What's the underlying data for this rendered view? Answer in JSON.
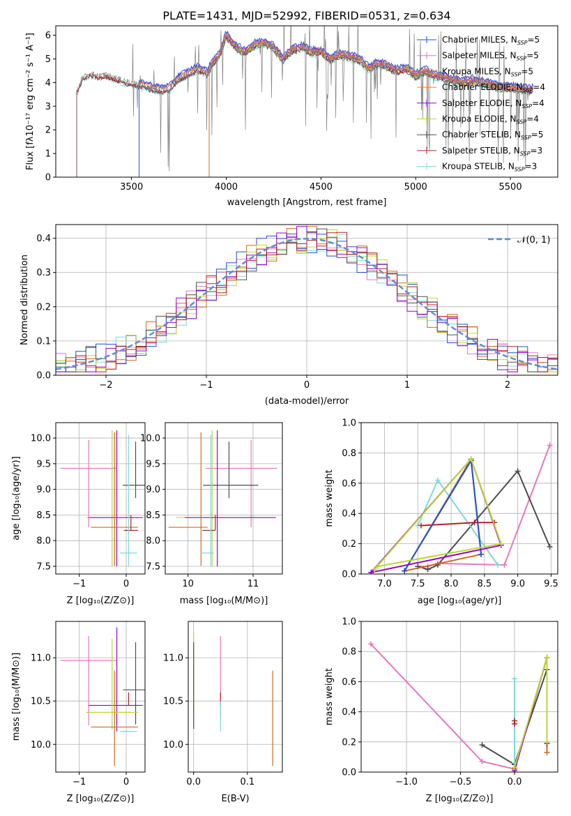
{
  "title": "PLATE=1431, MJD=52992, FIBERID=0531, z=0.634",
  "colors": {
    "chabrier_miles": "#1f4fd6",
    "salpeter_miles": "#e377c2",
    "kroupa_miles": "#d2691e",
    "chabrier_elodie": "#ff7f0e",
    "salpeter_elodie": "#9400d3",
    "kroupa_elodie": "#bcd630",
    "chabrier_stelib": "#4d4d4d",
    "salpeter_stelib": "#b22222",
    "kroupa_stelib": "#7fd8d8",
    "normal": "#5b8fd6",
    "data": "#808080"
  },
  "chart_data": [
    {
      "id": "spectrum",
      "type": "line",
      "title": "PLATE=1431, MJD=52992, FIBERID=0531, z=0.634",
      "xlabel": "wavelength [Angstrom, rest frame]",
      "ylabel": "Flux [f_λ 10^-17 erg cm^-2 s^-1 A^-1]",
      "xlim": [
        3100,
        5750
      ],
      "ylim": [
        0,
        6.4
      ],
      "xticks": [
        3500,
        4000,
        4500,
        5000,
        5500
      ],
      "yticks": [
        0,
        1,
        2,
        3,
        4,
        5,
        6
      ],
      "legend_position": "top-right",
      "legend": [
        {
          "label": "Chabrier MILES, N",
          "sub": "SSP",
          "suffix": "=5",
          "color_key": "chabrier_miles"
        },
        {
          "label": "Salpeter MILES, N",
          "sub": "SSP",
          "suffix": "=5",
          "color_key": "salpeter_miles"
        },
        {
          "label": "Kroupa MILES, N",
          "sub": "SSP",
          "suffix": "=5",
          "color_key": "kroupa_miles"
        },
        {
          "label": "Chabrier ELODIE, N",
          "sub": "SSP",
          "suffix": "=4",
          "color_key": "chabrier_elodie"
        },
        {
          "label": "Salpeter ELODIE, N",
          "sub": "SSP",
          "suffix": "=4",
          "color_key": "salpeter_elodie"
        },
        {
          "label": "Kroupa ELODIE, N",
          "sub": "SSP",
          "suffix": "=4",
          "color_key": "kroupa_elodie"
        },
        {
          "label": "Chabrier STELIB, N",
          "sub": "SSP",
          "suffix": "=5",
          "color_key": "chabrier_stelib"
        },
        {
          "label": "Salpeter STELIB, N",
          "sub": "SSP",
          "suffix": "=3",
          "color_key": "salpeter_stelib"
        },
        {
          "label": "Kroupa STELIB, N",
          "sub": "SSP",
          "suffix": "=3",
          "color_key": "kroupa_stelib"
        }
      ],
      "model_continuum": {
        "x": [
          3210,
          3240,
          3280,
          3320,
          3360,
          3400,
          3450,
          3500,
          3550,
          3600,
          3650,
          3700,
          3750,
          3800,
          3850,
          3900,
          3930,
          3960,
          4000,
          4050,
          4100,
          4150,
          4200,
          4250,
          4300,
          4350,
          4400,
          4450,
          4500,
          4550,
          4600,
          4650,
          4700,
          4750,
          4800,
          4850,
          4900,
          4950,
          5000,
          5050,
          5100,
          5150,
          5200,
          5250,
          5300,
          5350,
          5400,
          5450,
          5500,
          5550,
          5600,
          5620
        ],
        "y": [
          3.6,
          4.2,
          4.4,
          4.3,
          4.35,
          4.25,
          4.1,
          4.0,
          3.9,
          3.8,
          3.7,
          3.75,
          4.2,
          4.4,
          4.6,
          4.4,
          4.9,
          5.1,
          6.0,
          5.5,
          5.3,
          5.6,
          5.7,
          5.5,
          5.0,
          5.4,
          5.5,
          5.3,
          5.3,
          5.0,
          5.2,
          5.1,
          5.0,
          4.6,
          4.8,
          4.7,
          4.5,
          4.6,
          4.3,
          4.5,
          4.3,
          4.2,
          4.1,
          4.0,
          4.1,
          4.0,
          3.9,
          3.8,
          3.8,
          3.75,
          3.7,
          3.7
        ]
      },
      "data_extent": [
        3210,
        5620
      ],
      "model_starts": {
        "kroupa_miles": 3540,
        "salpeter_miles": 3540,
        "chabrier_miles": 3540,
        "elodie": 3910
      }
    },
    {
      "id": "residuals",
      "type": "histogram",
      "xlabel": "(data-model)/error",
      "ylabel": "Normed distribution",
      "xlim": [
        -2.5,
        2.5
      ],
      "ylim": [
        0,
        0.44
      ],
      "xticks": [
        -2,
        -1,
        0,
        1,
        2
      ],
      "yticks": [
        0.0,
        0.1,
        0.2,
        0.3,
        0.4
      ],
      "legend_position": "top-right",
      "normal_label": "𝒩(0, 1)",
      "bin_width": 0.1
    },
    {
      "id": "age_vs_Z",
      "type": "errorbar",
      "xlabel": "Z [log10(Z/Z⊙)]",
      "ylabel": "age  [log10(age/yr)]",
      "xlim": [
        -1.5,
        0.4
      ],
      "ylim": [
        7.35,
        10.3
      ],
      "xticks": [
        -1,
        0
      ],
      "yticks": [
        7.5,
        8.0,
        8.5,
        9.0,
        9.5,
        10.0
      ],
      "points": [
        {
          "s": "salpeter_miles",
          "x": -0.8,
          "xerr": [
            0.6,
            0.6
          ],
          "y": 9.41,
          "yerr": [
            1.15,
            0.55
          ]
        },
        {
          "s": "chabrier_stelib",
          "x": 0.2,
          "xerr": [
            0.27,
            0.27
          ],
          "y": 9.08,
          "yerr": [
            0.25,
            0.85
          ]
        },
        {
          "s": "kroupa_elodie",
          "x": -0.3,
          "xerr": [
            0.55,
            0.55
          ],
          "y": 8.45,
          "yerr": [
            0.95,
            1.7
          ]
        },
        {
          "s": "salpeter_elodie",
          "x": -0.2,
          "xerr": [
            0.6,
            0.55
          ],
          "y": 8.45,
          "yerr": [
            0.95,
            1.7
          ]
        },
        {
          "s": "kroupa_miles",
          "x": -0.25,
          "xerr": [
            0.5,
            0.5
          ],
          "y": 8.26,
          "yerr": [
            0.75,
            1.85
          ]
        },
        {
          "s": "salpeter_stelib",
          "x": 0.1,
          "xerr": [
            0.15,
            0.15
          ],
          "y": 8.2,
          "yerr": [
            0.0,
            0.3
          ]
        },
        {
          "s": "kroupa_stelib",
          "x": 0.05,
          "xerr": [
            0.18,
            0.18
          ],
          "y": 7.76,
          "yerr": [
            0.25,
            2.3
          ]
        }
      ]
    },
    {
      "id": "age_vs_mass",
      "type": "errorbar",
      "xlabel": "mass [log10(M/M⊙)]",
      "ylabel": "",
      "xlim": [
        9.65,
        11.45
      ],
      "ylim": [
        7.35,
        10.3
      ],
      "xticks": [
        10,
        11
      ],
      "yticks": [
        7.5,
        8.0,
        8.5,
        9.0,
        9.5,
        10.0
      ],
      "points": [
        {
          "s": "salpeter_miles",
          "x": 10.97,
          "xerr": [
            0.7,
            0.4
          ],
          "y": 9.41,
          "yerr": [
            1.15,
            0.55
          ]
        },
        {
          "s": "chabrier_stelib",
          "x": 10.63,
          "xerr": [
            0.4,
            0.45
          ],
          "y": 9.08,
          "yerr": [
            0.25,
            0.85
          ]
        },
        {
          "s": "kroupa_elodie",
          "x": 10.37,
          "xerr": [
            0.55,
            0.95
          ],
          "y": 8.45,
          "yerr": [
            0.95,
            1.7
          ]
        },
        {
          "s": "salpeter_elodie",
          "x": 10.45,
          "xerr": [
            0.5,
            0.9
          ],
          "y": 8.45,
          "yerr": [
            0.95,
            1.7
          ]
        },
        {
          "s": "kroupa_miles",
          "x": 10.2,
          "xerr": [
            0.5,
            0.1
          ],
          "y": 8.26,
          "yerr": [
            0.75,
            1.85
          ]
        },
        {
          "s": "salpeter_stelib",
          "x": 10.42,
          "xerr": [
            0.2,
            0.0
          ],
          "y": 8.2,
          "yerr": [
            0.0,
            0.3
          ]
        },
        {
          "s": "kroupa_stelib",
          "x": 10.35,
          "xerr": [
            0.15,
            0.05
          ],
          "y": 7.76,
          "yerr": [
            0.25,
            2.3
          ]
        }
      ]
    },
    {
      "id": "weight_vs_age",
      "type": "line",
      "xlabel": "age  [log10(age/yr)]",
      "ylabel": "mass weight",
      "xlim": [
        6.65,
        9.6
      ],
      "ylim": [
        0,
        1.0
      ],
      "xticks": [
        7.0,
        7.5,
        8.0,
        8.5,
        9.0,
        9.5
      ],
      "yticks": [
        0.0,
        0.2,
        0.4,
        0.6,
        0.8,
        1.0
      ],
      "series": [
        {
          "s": "salpeter_miles",
          "x": [
            7.5,
            7.65,
            7.8,
            8.8,
            9.48
          ],
          "y": [
            0.05,
            0.05,
            0.07,
            0.06,
            0.85
          ]
        },
        {
          "s": "chabrier_stelib",
          "x": [
            7.5,
            7.65,
            7.8,
            9.0,
            9.48
          ],
          "y": [
            0.05,
            0.03,
            0.06,
            0.68,
            0.18
          ]
        },
        {
          "s": "kroupa_stelib",
          "x": [
            7.5,
            7.8,
            8.7
          ],
          "y": [
            0.32,
            0.62,
            0.06
          ]
        },
        {
          "s": "salpeter_stelib",
          "x": [
            7.55,
            8.35,
            8.65
          ],
          "y": [
            0.32,
            0.34,
            0.34
          ]
        },
        {
          "s": "kroupa_miles",
          "x": [
            7.3,
            8.3,
            8.45,
            7.3
          ],
          "y": [
            0.02,
            0.76,
            0.13,
            0.02
          ]
        },
        {
          "s": "chabrier_miles",
          "x": [
            7.3,
            8.3,
            8.45
          ],
          "y": [
            0.02,
            0.75,
            0.13
          ]
        },
        {
          "s": "salpeter_elodie",
          "x": [
            6.8,
            8.3,
            8.75,
            6.8
          ],
          "y": [
            0.01,
            0.76,
            0.19,
            0.01
          ]
        },
        {
          "s": "kroupa_elodie",
          "x": [
            6.85,
            8.3,
            8.75,
            6.9
          ],
          "y": [
            0.03,
            0.76,
            0.2,
            0.05
          ]
        }
      ]
    },
    {
      "id": "mass_vs_Z",
      "type": "errorbar",
      "xlabel": "Z [log10(Z/Z⊙)]",
      "ylabel": "mass [log10(M/M⊙)]",
      "xlim": [
        -1.5,
        0.4
      ],
      "ylim": [
        9.68,
        11.42
      ],
      "xticks": [
        -1,
        0
      ],
      "yticks": [
        10.0,
        10.5,
        11.0
      ],
      "points": [
        {
          "s": "salpeter_miles",
          "x": -0.8,
          "xerr": [
            0.6,
            0.6
          ],
          "y": 10.97,
          "yerr": [
            0.75,
            0.28
          ]
        },
        {
          "s": "chabrier_stelib",
          "x": 0.2,
          "xerr": [
            0.27,
            0.27
          ],
          "y": 10.63,
          "yerr": [
            0.4,
            0.55
          ]
        },
        {
          "s": "salpeter_stelib",
          "x": 0.05,
          "xerr": [
            0.0,
            0.0
          ],
          "y": 10.55,
          "yerr": [
            0.1,
            0.05
          ]
        },
        {
          "s": "salpeter_elodie",
          "x": -0.2,
          "xerr": [
            0.6,
            0.55
          ],
          "y": 10.45,
          "yerr": [
            0.3,
            0.9
          ]
        },
        {
          "s": "kroupa_elodie",
          "x": -0.3,
          "xerr": [
            0.55,
            0.55
          ],
          "y": 10.37,
          "yerr": [
            0.2,
            0.85
          ]
        },
        {
          "s": "kroupa_miles",
          "x": -0.25,
          "xerr": [
            0.5,
            0.5
          ],
          "y": 10.2,
          "yerr": [
            0.45,
            0.65
          ]
        },
        {
          "s": "kroupa_stelib",
          "x": 0.05,
          "xerr": [
            0.18,
            0.18
          ],
          "y": 10.15,
          "yerr": [
            0.0,
            0.0
          ]
        }
      ]
    },
    {
      "id": "mass_vs_ebv",
      "type": "errorbar",
      "xlabel": "E(B-V)",
      "ylabel": "",
      "xlim": [
        -0.01,
        0.165
      ],
      "ylim": [
        9.68,
        11.42
      ],
      "xticks": [
        0.0,
        0.1
      ],
      "yticks": [
        10.0,
        10.5,
        11.0
      ],
      "points": [
        {
          "s": "kroupa_elodie",
          "x": 0.0,
          "xerr": [
            0,
            0
          ],
          "y": 10.8,
          "yerr": [
            0.45,
            0.5
          ]
        },
        {
          "s": "chabrier_stelib",
          "x": 0.0,
          "xerr": [
            0,
            0
          ],
          "y": 10.63,
          "yerr": [
            0.45,
            0.55
          ]
        },
        {
          "s": "kroupa_stelib",
          "x": 0.0,
          "xerr": [
            0,
            0
          ],
          "y": 10.15,
          "yerr": [
            0.0,
            0.0
          ]
        },
        {
          "s": "salpeter_miles",
          "x": 0.05,
          "xerr": [
            0,
            0
          ],
          "y": 10.85,
          "yerr": [
            0.55,
            0.4
          ]
        },
        {
          "s": "salpeter_stelib",
          "x": 0.05,
          "xerr": [
            0,
            0
          ],
          "y": 10.55,
          "yerr": [
            0.1,
            0.05
          ]
        },
        {
          "s": "kroupa_stelib",
          "x": 0.05,
          "xerr": [
            0,
            0
          ],
          "y": 10.45,
          "yerr": [
            0.3,
            0.05
          ]
        },
        {
          "s": "kroupa_miles",
          "x": 0.147,
          "xerr": [
            0,
            0
          ],
          "y": 10.4,
          "yerr": [
            0.65,
            0.45
          ]
        }
      ]
    },
    {
      "id": "weight_vs_Z",
      "type": "line",
      "xlabel": "Z [log10(Z/Z⊙)]",
      "ylabel": "mass weight",
      "xlim": [
        -1.42,
        0.4
      ],
      "ylim": [
        0,
        1.0
      ],
      "xticks": [
        -1.0,
        -0.5,
        0.0
      ],
      "yticks": [
        0.0,
        0.2,
        0.4,
        0.6,
        0.8,
        1.0
      ],
      "series": [
        {
          "s": "salpeter_miles",
          "x": [
            -1.33,
            -0.3,
            0.0
          ],
          "y": [
            0.85,
            0.07,
            0.02
          ]
        },
        {
          "s": "chabrier_stelib",
          "x": [
            -0.3,
            0.0,
            0.3,
            0.3
          ],
          "y": [
            0.18,
            0.05,
            0.68,
            0.2
          ]
        },
        {
          "s": "kroupa_stelib",
          "x": [
            0.0,
            0.0
          ],
          "y": [
            0.62,
            0.06
          ]
        },
        {
          "s": "salpeter_stelib",
          "x": [
            0.0,
            0.0
          ],
          "y": [
            0.34,
            0.32
          ]
        },
        {
          "s": "kroupa_miles",
          "x": [
            0.0,
            0.3,
            0.3
          ],
          "y": [
            0.02,
            0.76,
            0.13
          ]
        },
        {
          "s": "salpeter_elodie",
          "x": [
            0.0,
            0.3,
            0.3
          ],
          "y": [
            0.01,
            0.76,
            0.19
          ]
        },
        {
          "s": "kroupa_elodie",
          "x": [
            0.0,
            0.3,
            0.3
          ],
          "y": [
            0.03,
            0.76,
            0.2
          ]
        }
      ]
    }
  ]
}
